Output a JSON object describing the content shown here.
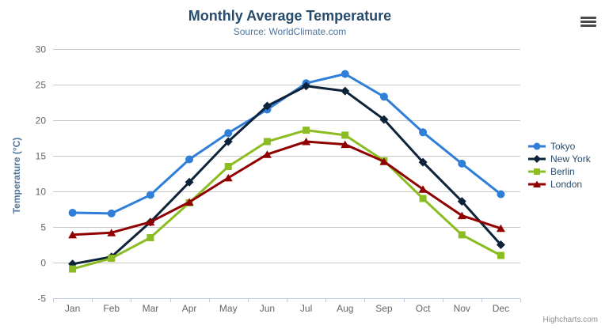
{
  "header": {
    "title": "Monthly Average Temperature",
    "subtitle": "Source: WorldClimate.com"
  },
  "chart_data": {
    "type": "line",
    "title": "Monthly Average Temperature",
    "subtitle": "Source: WorldClimate.com",
    "categories": [
      "Jan",
      "Feb",
      "Mar",
      "Apr",
      "May",
      "Jun",
      "Jul",
      "Aug",
      "Sep",
      "Oct",
      "Nov",
      "Dec"
    ],
    "series": [
      {
        "name": "Tokyo",
        "color": "#2f7ed8",
        "marker": "circle",
        "values": [
          7.0,
          6.9,
          9.5,
          14.5,
          18.2,
          21.5,
          25.2,
          26.5,
          23.3,
          18.3,
          13.9,
          9.6
        ]
      },
      {
        "name": "New York",
        "color": "#0d233a",
        "marker": "diamond",
        "values": [
          -0.2,
          0.8,
          5.7,
          11.3,
          17.0,
          22.0,
          24.8,
          24.1,
          20.1,
          14.1,
          8.6,
          2.5
        ]
      },
      {
        "name": "Berlin",
        "color": "#8bbc21",
        "marker": "square",
        "values": [
          -0.9,
          0.6,
          3.5,
          8.4,
          13.5,
          17.0,
          18.6,
          17.9,
          14.3,
          9.0,
          3.9,
          1.0
        ]
      },
      {
        "name": "London",
        "color": "#910000",
        "marker": "triangle",
        "values": [
          3.9,
          4.2,
          5.7,
          8.5,
          11.9,
          15.2,
          17.0,
          16.6,
          14.2,
          10.3,
          6.6,
          4.8
        ]
      }
    ],
    "xlabel": "",
    "ylabel": "Temperature (°C)",
    "ylim": [
      -5,
      30
    ],
    "ytick_interval": 5,
    "grid": true,
    "legend_position": "right"
  },
  "legend": {
    "items": [
      "Tokyo",
      "New York",
      "Berlin",
      "London"
    ]
  },
  "export_menu": {
    "icon": "hamburger-menu-icon"
  },
  "credits": {
    "label": "Highcharts.com"
  },
  "palette": {
    "grid_line": "#c8c8c8",
    "axis_line": "#c0d0e0",
    "tick_label": "#666666",
    "title_text": "#274b6d",
    "subtitle_text": "#4d759e",
    "axis_title_text": "#4d759e",
    "legend_text": "#274b6d",
    "credit_text": "#909090"
  }
}
